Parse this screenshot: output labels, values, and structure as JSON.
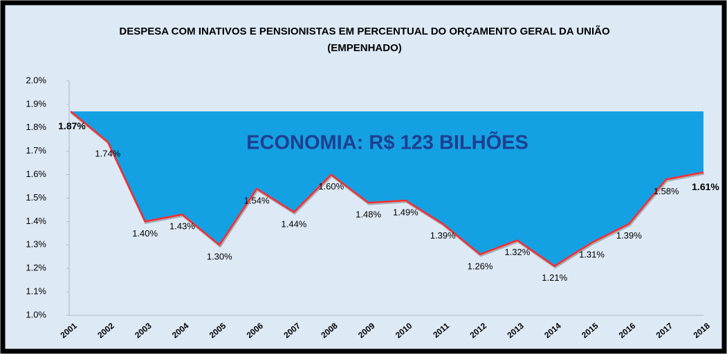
{
  "chart_data": {
    "type": "area-line",
    "title": [
      "DESPESA COM INATIVOS E PENSIONISTAS EM PERCENTUAL DO ORÇAMENTO GERAL DA UNIÃO",
      "(EMPENHADO)"
    ],
    "annotation": "ECONOMIA: R$ 123 BILHÕES",
    "categories": [
      "2001",
      "2002",
      "2003",
      "2004",
      "2005",
      "2006",
      "2007",
      "2008",
      "2009",
      "2010",
      "2011",
      "2012",
      "2013",
      "2014",
      "2015",
      "2016",
      "2017",
      "2018"
    ],
    "values": [
      1.87,
      1.74,
      1.4,
      1.43,
      1.3,
      1.54,
      1.44,
      1.6,
      1.48,
      1.49,
      1.39,
      1.26,
      1.32,
      1.21,
      1.31,
      1.39,
      1.58,
      1.61
    ],
    "value_labels": [
      "1.87%",
      "1.74%",
      "1.40%",
      "1.43%",
      "1.30%",
      "1.54%",
      "1.44%",
      "1.60%",
      "1.48%",
      "1.49%",
      "1.39%",
      "1.26%",
      "1.32%",
      "1.21%",
      "1.31%",
      "1.39%",
      "1.58%",
      "1.61%"
    ],
    "color": "#ff2b2b",
    "fill_color": "#14a1e4",
    "ylim": [
      1.0,
      2.0
    ],
    "yticks": [
      {
        "value": 1.0,
        "label": "1.0%"
      },
      {
        "value": 1.1,
        "label": "1.1%"
      },
      {
        "value": 1.2,
        "label": "1.2%"
      },
      {
        "value": 1.3,
        "label": "1.3%"
      },
      {
        "value": 1.4,
        "label": "1.4%"
      },
      {
        "value": 1.5,
        "label": "1.5%"
      },
      {
        "value": 1.6,
        "label": "1.6%"
      },
      {
        "value": 1.7,
        "label": "1.7%"
      },
      {
        "value": 1.8,
        "label": "1.8%"
      },
      {
        "value": 1.9,
        "label": "1.9%"
      },
      {
        "value": 2.0,
        "label": "2.0%"
      }
    ],
    "grid": false
  }
}
